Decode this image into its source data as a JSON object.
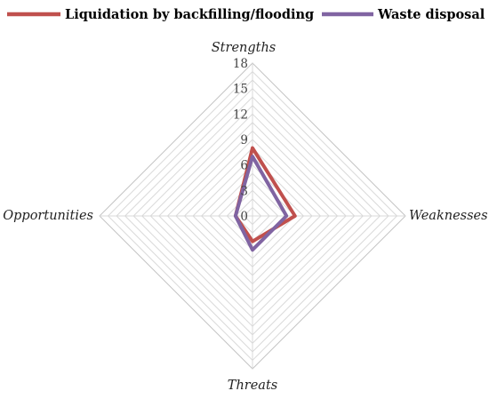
{
  "chart_data": {
    "type": "radar",
    "axes": [
      "Strengths",
      "Weaknesses",
      "Threats",
      "Opportunities"
    ],
    "ticks": [
      0,
      3,
      6,
      9,
      12,
      15,
      18
    ],
    "rlim": [
      0,
      18
    ],
    "grid": true,
    "legend_position": "top",
    "series": [
      {
        "name": "Liquidation by backfilling/flooding",
        "color": "#c0504d",
        "values": [
          8,
          5,
          3,
          2
        ]
      },
      {
        "name": "Waste disposal",
        "color": "#8064a2",
        "values": [
          7,
          4,
          4,
          2
        ]
      }
    ]
  }
}
